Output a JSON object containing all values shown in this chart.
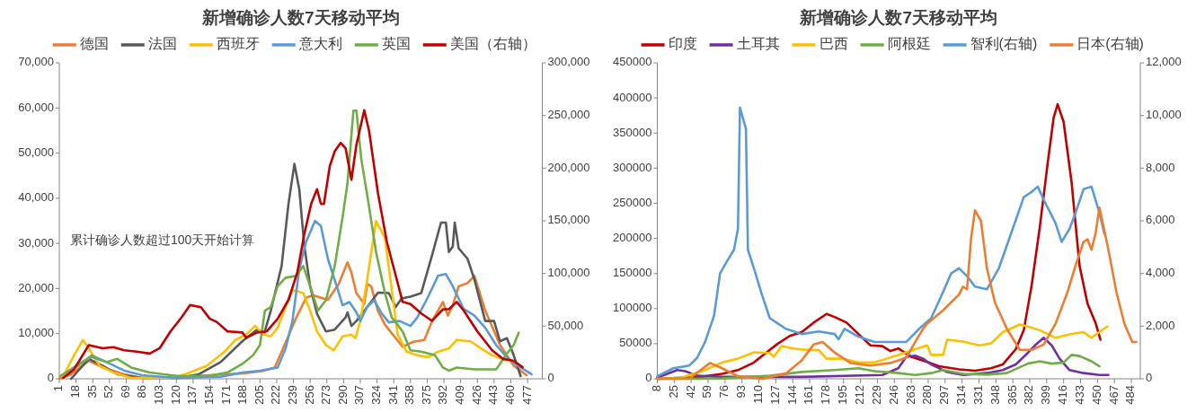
{
  "chart_data": [
    {
      "type": "line",
      "title": "新增确诊人数7天移动平均",
      "legend": "top",
      "annotations": [
        "累计确诊人数超过100天开始计算"
      ],
      "xlim": [
        1,
        492
      ],
      "xticks": [
        1,
        18,
        35,
        52,
        69,
        86,
        103,
        120,
        137,
        154,
        171,
        188,
        205,
        222,
        239,
        256,
        273,
        290,
        307,
        324,
        341,
        358,
        375,
        392,
        409,
        426,
        443,
        460,
        477
      ],
      "ylim": [
        0,
        70000
      ],
      "yticks": [
        0,
        {
          "value": 10000,
          "label": "10,000"
        },
        {
          "value": 20000,
          "label": "20,000"
        },
        {
          "value": 30000,
          "label": "30,000"
        },
        {
          "value": 40000,
          "label": "40,000"
        },
        {
          "value": 50000,
          "label": "50,000"
        },
        {
          "value": 60000,
          "label": "60,000"
        },
        {
          "value": 70000,
          "label": "70,000"
        }
      ],
      "y2lim": [
        0,
        300000
      ],
      "y2ticks": [
        0,
        {
          "value": 50000,
          "label": "50,000"
        },
        {
          "value": 100000,
          "label": "100,000"
        },
        {
          "value": 150000,
          "label": "150,000"
        },
        {
          "value": 200000,
          "label": "200,000"
        },
        {
          "value": 250000,
          "label": "250,000"
        },
        {
          "value": 300000,
          "label": "300,000"
        }
      ],
      "series": [
        {
          "name": "德国",
          "color": "#ed7d31",
          "x": [
            1,
            13,
            31,
            45,
            67,
            85,
            120,
            188,
            207,
            220,
            231,
            242,
            252,
            259,
            274,
            285,
            294,
            298,
            303,
            311,
            314,
            318,
            325,
            332,
            343,
            350,
            361,
            372,
            380,
            391,
            396,
            401,
            407,
            416,
            423,
            434,
            449,
            463,
            476
          ],
          "values": [
            0,
            1000,
            4000,
            2500,
            1000,
            200,
            400,
            1200,
            1700,
            2500,
            8000,
            13600,
            18000,
            18500,
            17500,
            21000,
            25800,
            23500,
            19000,
            16600,
            21000,
            20500,
            15000,
            12000,
            9000,
            7100,
            8200,
            8600,
            12800,
            17000,
            14000,
            16300,
            20500,
            21200,
            22800,
            15100,
            7500,
            2900,
            800
          ]
        },
        {
          "name": "法国",
          "color": "#595959",
          "x": [
            13,
            31,
            45,
            60,
            85,
            122,
            143,
            165,
            187,
            202,
            209,
            216,
            227,
            234,
            240,
            245,
            250,
            256,
            263,
            272,
            281,
            292,
            294,
            298,
            303,
            314,
            325,
            336,
            343,
            349,
            358,
            369,
            380,
            389,
            394,
            397,
            401,
            403,
            407,
            416,
            423,
            434,
            443,
            449,
            456,
            463,
            470
          ],
          "values": [
            0,
            4400,
            2900,
            1000,
            200,
            200,
            1000,
            3700,
            8300,
            10900,
            9800,
            15100,
            25000,
            38800,
            47600,
            41900,
            29600,
            20500,
            14400,
            10500,
            10900,
            13600,
            14700,
            11700,
            12800,
            15900,
            19100,
            19000,
            15900,
            17800,
            18200,
            19000,
            27400,
            34600,
            34600,
            28100,
            29300,
            34600,
            28900,
            26600,
            22000,
            12800,
            12800,
            8300,
            9000,
            5200,
            600
          ]
        },
        {
          "name": "西班牙",
          "color": "#ffc000",
          "x": [
            5,
            16,
            25,
            31,
            42,
            56,
            74,
            114,
            129,
            151,
            169,
            180,
            191,
            200,
            209,
            216,
            223,
            231,
            238,
            249,
            256,
            263,
            272,
            280,
            289,
            298,
            302,
            307,
            314,
            323,
            332,
            339,
            345,
            354,
            365,
            376,
            386,
            397,
            405,
            419,
            430,
            441,
            456
          ],
          "values": [
            600,
            5200,
            8600,
            6700,
            2900,
            1400,
            200,
            200,
            1000,
            2900,
            6000,
            8600,
            9800,
            11700,
            9800,
            9400,
            11300,
            15900,
            19700,
            19000,
            15100,
            10500,
            7500,
            6300,
            9400,
            9800,
            9000,
            12800,
            22000,
            35000,
            31200,
            19700,
            9800,
            6000,
            5200,
            4800,
            6000,
            6700,
            8600,
            8300,
            6700,
            5200,
            4000
          ]
        },
        {
          "name": "意大利",
          "color": "#5b9bd5",
          "x": [
            5,
            24,
            34,
            49,
            67,
            85,
            122,
            165,
            187,
            205,
            223,
            231,
            238,
            245,
            252,
            261,
            267,
            274,
            283,
            289,
            296,
            303,
            307,
            314,
            321,
            329,
            336,
            347,
            358,
            365,
            376,
            386,
            394,
            401,
            412,
            423,
            434,
            445,
            456,
            467,
            481
          ],
          "values": [
            1000,
            3700,
            4800,
            3700,
            1800,
            800,
            150,
            450,
            1400,
            1800,
            2500,
            6700,
            12800,
            24300,
            30400,
            35000,
            33800,
            26600,
            20500,
            16300,
            17000,
            14700,
            12800,
            15900,
            17400,
            14400,
            12500,
            12800,
            11700,
            13600,
            18200,
            22800,
            23200,
            20500,
            15500,
            14000,
            11300,
            7500,
            4800,
            2900,
            1000
          ]
        },
        {
          "name": "英国",
          "color": "#70ad47",
          "x": [
            2,
            20,
            34,
            49,
            60,
            74,
            93,
            122,
            151,
            172,
            187,
            198,
            205,
            210,
            216,
            223,
            231,
            242,
            249,
            256,
            264,
            272,
            281,
            289,
            294,
            300,
            303,
            308,
            316,
            323,
            332,
            339,
            350,
            358,
            369,
            383,
            391,
            397,
            405,
            423,
            437,
            445,
            449,
            456,
            463,
            468
          ],
          "values": [
            600,
            2900,
            5200,
            3700,
            4400,
            2500,
            1400,
            600,
            600,
            1400,
            3300,
            5200,
            7500,
            15100,
            15900,
            20500,
            22400,
            22800,
            25000,
            20500,
            15100,
            17400,
            25000,
            35800,
            43400,
            59400,
            59400,
            48700,
            38000,
            28100,
            19000,
            13600,
            10500,
            6300,
            6000,
            5200,
            2500,
            1800,
            2500,
            2100,
            2100,
            2100,
            3300,
            5600,
            7500,
            10200
          ]
        },
        {
          "name": "美国（右轴）",
          "color": "#c00000",
          "axis": "y2",
          "x": [
            5,
            16,
            31,
            45,
            56,
            67,
            78,
            93,
            103,
            114,
            125,
            134,
            145,
            154,
            161,
            172,
            187,
            191,
            202,
            212,
            223,
            234,
            243,
            250,
            257,
            263,
            267,
            270,
            276,
            281,
            287,
            292,
            298,
            303,
            311,
            316,
            325,
            334,
            343,
            350,
            358,
            369,
            380,
            391,
            397,
            405,
            412,
            426,
            441,
            452,
            463,
            472
          ],
          "values": [
            900,
            9000,
            32000,
            29000,
            30000,
            27000,
            26000,
            24000,
            29000,
            45000,
            58000,
            70000,
            68000,
            57000,
            54000,
            45000,
            44000,
            39000,
            44000,
            45000,
            57000,
            75000,
            101000,
            137000,
            166000,
            180000,
            166000,
            166000,
            202000,
            216000,
            224000,
            219000,
            189000,
            222000,
            255000,
            235000,
            176000,
            130000,
            98000,
            73000,
            71000,
            62000,
            55000,
            66000,
            66000,
            73000,
            65000,
            45000,
            27000,
            19000,
            17000,
            11000
          ]
        }
      ]
    },
    {
      "type": "line",
      "title": "新增确诊人数7天移动平均",
      "legend": "top",
      "xlim": [
        8,
        493
      ],
      "xticks": [
        8,
        25,
        42,
        59,
        76,
        93,
        110,
        127,
        144,
        161,
        178,
        195,
        212,
        229,
        246,
        263,
        280,
        297,
        314,
        331,
        348,
        365,
        382,
        399,
        416,
        433,
        450,
        467,
        484
      ],
      "ylim": [
        0,
        450000
      ],
      "yticks": [
        0,
        50000,
        100000,
        150000,
        200000,
        250000,
        300000,
        350000,
        400000,
        450000
      ],
      "y2lim": [
        0,
        12000
      ],
      "y2ticks": [
        0,
        {
          "value": 2000,
          "label": "2,000"
        },
        {
          "value": 4000,
          "label": "4,000"
        },
        {
          "value": 6000,
          "label": "6,000"
        },
        {
          "value": 8000,
          "label": "8,000"
        },
        {
          "value": 10000,
          "label": "10,000"
        },
        {
          "value": 12000,
          "label": "12,000"
        }
      ],
      "series": [
        {
          "name": "印度",
          "color": "#c00000",
          "x": [
            8,
            52,
            73,
            89,
            105,
            117,
            129,
            141,
            153,
            165,
            178,
            186,
            198,
            210,
            222,
            234,
            242,
            250,
            263,
            275,
            291,
            311,
            327,
            343,
            355,
            368,
            376,
            384,
            392,
            400,
            406,
            410,
            416,
            424,
            432,
            440,
            448,
            453
          ],
          "values": [
            0,
            2700,
            7000,
            12400,
            23200,
            36800,
            50000,
            61000,
            66500,
            80000,
            92400,
            88000,
            80000,
            63800,
            47600,
            46500,
            39500,
            43200,
            31300,
            25900,
            17800,
            13500,
            11400,
            15100,
            20500,
            42200,
            69200,
            134000,
            215000,
            307000,
            372000,
            391000,
            366000,
            280000,
            161000,
            107000,
            80000,
            55700
          ]
        },
        {
          "name": "土耳其",
          "color": "#7030a0",
          "x": [
            8,
            28,
            36,
            48,
            73,
            153,
            234,
            250,
            258,
            267,
            275,
            283,
            299,
            315,
            339,
            355,
            368,
            380,
            388,
            396,
            404,
            412,
            422,
            436,
            452,
            461
          ],
          "values": [
            1600,
            12400,
            10800,
            4300,
            2700,
            2700,
            5400,
            15100,
            31300,
            33000,
            28600,
            20500,
            9700,
            5400,
            8100,
            12400,
            20500,
            36800,
            48600,
            58400,
            47600,
            28600,
            12400,
            8100,
            5400,
            5400
          ]
        },
        {
          "name": "巴西",
          "color": "#ffc000",
          "x": [
            8,
            32,
            56,
            73,
            89,
            105,
            121,
            125,
            133,
            145,
            157,
            170,
            178,
            194,
            210,
            226,
            238,
            250,
            267,
            279,
            283,
            295,
            299,
            315,
            331,
            343,
            355,
            372,
            380,
            392,
            408,
            424,
            436,
            444,
            457,
            460
          ],
          "values": [
            0,
            1600,
            12400,
            23200,
            28600,
            37800,
            36800,
            31300,
            46500,
            43200,
            41100,
            41100,
            28600,
            28600,
            23200,
            23200,
            28600,
            34000,
            42200,
            47600,
            34000,
            34000,
            55700,
            53000,
            47600,
            50300,
            66500,
            77300,
            74600,
            69200,
            58400,
            63800,
            66500,
            58400,
            71900,
            74600
          ]
        },
        {
          "name": "阿根廷",
          "color": "#70ad47",
          "x": [
            8,
            73,
            121,
            153,
            186,
            210,
            226,
            250,
            267,
            283,
            295,
            315,
            339,
            359,
            380,
            392,
            404,
            416,
            424,
            432,
            444,
            452
          ],
          "values": [
            0,
            500,
            4300,
            9700,
            12400,
            15100,
            10800,
            8100,
            5400,
            8100,
            12400,
            7000,
            5900,
            8100,
            21600,
            24900,
            21600,
            23200,
            34000,
            32400,
            24900,
            17800
          ]
        },
        {
          "name": "智利(右轴)",
          "color": "#5b9bd5",
          "axis": "y2",
          "x": [
            8,
            24,
            40,
            48,
            56,
            65,
            71,
            77,
            85,
            89,
            91,
            97,
            99,
            105,
            113,
            121,
            129,
            137,
            153,
            170,
            186,
            190,
            196,
            210,
            226,
            242,
            258,
            271,
            283,
            295,
            303,
            311,
            319,
            327,
            339,
            351,
            364,
            376,
            384,
            390,
            396,
            408,
            414,
            422,
            428,
            436,
            444,
            452,
            457
          ],
          "values": [
            100,
            400,
            500,
            800,
            1400,
            2400,
            4000,
            4400,
            4900,
            5700,
            10300,
            9500,
            4900,
            4200,
            3200,
            2300,
            2100,
            1900,
            1700,
            1800,
            1700,
            1500,
            1900,
            1600,
            1400,
            1400,
            1400,
            1900,
            2300,
            3300,
            4000,
            4200,
            3900,
            3500,
            3400,
            4200,
            5600,
            6900,
            7100,
            7300,
            6800,
            5900,
            5200,
            5700,
            6300,
            7200,
            7300,
            6300,
            5500
          ]
        },
        {
          "name": "日本(右轴)",
          "color": "#ed7d31",
          "axis": "y2",
          "x": [
            8,
            40,
            61,
            73,
            89,
            113,
            137,
            153,
            165,
            174,
            186,
            202,
            222,
            242,
            258,
            267,
            275,
            279,
            295,
            311,
            315,
            319,
            323,
            327,
            333,
            339,
            347,
            359,
            372,
            384,
            396,
            408,
            420,
            428,
            436,
            440,
            444,
            448,
            452,
            461,
            469,
            477,
            485,
            489
          ],
          "values": [
            0,
            0,
            600,
            400,
            100,
            0,
            200,
            700,
            1300,
            1400,
            1000,
            600,
            500,
            600,
            800,
            1400,
            1900,
            2100,
            2600,
            3200,
            3500,
            3400,
            5300,
            6400,
            6000,
            4200,
            2900,
            1900,
            1100,
            1100,
            1300,
            2100,
            3300,
            4300,
            5200,
            5300,
            4900,
            5500,
            6500,
            4900,
            3300,
            2100,
            1400,
            1400
          ]
        }
      ]
    }
  ]
}
